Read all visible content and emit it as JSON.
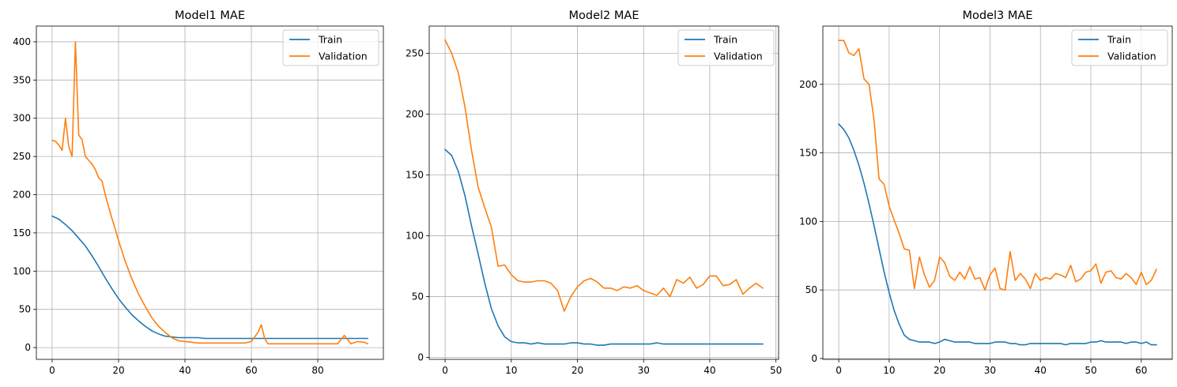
{
  "chart_data": [
    {
      "type": "line",
      "title": "Model1 MAE",
      "xlim": [
        -4.75,
        99.75
      ],
      "ylim": [
        -15.4,
        420.6
      ],
      "xticks": [
        0,
        20,
        40,
        60,
        80
      ],
      "yticks": [
        0,
        50,
        100,
        150,
        200,
        250,
        300,
        350,
        400
      ],
      "grid": true,
      "legend": "top-right",
      "series": [
        {
          "name": "Train",
          "color": "#1f77b4",
          "x": [
            0,
            2,
            4,
            6,
            8,
            10,
            12,
            14,
            16,
            18,
            20,
            22,
            24,
            26,
            28,
            30,
            32,
            34,
            36,
            38,
            40,
            42,
            44,
            46,
            48,
            50,
            52,
            54,
            56,
            58,
            60,
            62,
            64,
            66,
            68,
            70,
            72,
            74,
            76,
            78,
            80,
            82,
            84,
            86,
            88,
            90,
            92,
            95
          ],
          "y": [
            172,
            168,
            161,
            153,
            143,
            133,
            120,
            106,
            91,
            77,
            64,
            53,
            43,
            35,
            28,
            22,
            18,
            15,
            14,
            13,
            13,
            13,
            13,
            12,
            12,
            12,
            12,
            12,
            12,
            12,
            12,
            12,
            12,
            12,
            12,
            12,
            12,
            12,
            12,
            12,
            12,
            12,
            12,
            12,
            12,
            12,
            12,
            12
          ]
        },
        {
          "name": "Validation",
          "color": "#ff7f0e",
          "x": [
            0,
            1,
            2,
            3,
            4,
            5,
            6,
            7,
            8,
            9,
            10,
            11,
            12,
            13,
            14,
            15,
            16,
            17,
            18,
            19,
            20,
            22,
            24,
            26,
            28,
            30,
            32,
            34,
            36,
            38,
            40,
            42,
            44,
            46,
            48,
            50,
            52,
            54,
            56,
            58,
            60,
            62,
            63,
            64,
            65,
            66,
            68,
            70,
            72,
            74,
            76,
            78,
            80,
            82,
            84,
            86,
            88,
            90,
            92,
            94,
            95
          ],
          "y": [
            271,
            270,
            265,
            258,
            300,
            263,
            250,
            400,
            278,
            272,
            250,
            245,
            240,
            233,
            222,
            218,
            200,
            184,
            169,
            155,
            140,
            113,
            90,
            70,
            54,
            39,
            28,
            20,
            13,
            9,
            8,
            7,
            6,
            6,
            6,
            6,
            6,
            6,
            6,
            6,
            8,
            20,
            30,
            12,
            5,
            5,
            5,
            5,
            5,
            5,
            5,
            5,
            5,
            5,
            5,
            5,
            16,
            5,
            8,
            7,
            5
          ]
        }
      ]
    },
    {
      "type": "line",
      "title": "Model2 MAE",
      "xlim": [
        -2.4,
        50.4
      ],
      "ylim": [
        -1.6,
        272.5
      ],
      "xticks": [
        0,
        10,
        20,
        30,
        40,
        50
      ],
      "yticks": [
        0,
        50,
        100,
        150,
        200,
        250
      ],
      "grid": true,
      "legend": "top-right",
      "series": [
        {
          "name": "Train",
          "color": "#1f77b4",
          "x": [
            0,
            1,
            2,
            3,
            4,
            5,
            6,
            7,
            8,
            9,
            10,
            11,
            12,
            13,
            14,
            15,
            16,
            17,
            18,
            19,
            20,
            21,
            22,
            23,
            24,
            25,
            26,
            27,
            28,
            29,
            30,
            31,
            32,
            33,
            34,
            35,
            36,
            37,
            38,
            39,
            40,
            41,
            42,
            43,
            44,
            45,
            46,
            47,
            48
          ],
          "y": [
            171,
            166,
            153,
            133,
            108,
            85,
            61,
            40,
            26,
            17,
            13,
            12,
            12,
            11,
            12,
            11,
            11,
            11,
            11,
            12,
            12,
            11,
            11,
            10,
            10,
            11,
            11,
            11,
            11,
            11,
            11,
            11,
            12,
            11,
            11,
            11,
            11,
            11,
            11,
            11,
            11,
            11,
            11,
            11,
            11,
            11,
            11,
            11,
            11
          ]
        },
        {
          "name": "Validation",
          "color": "#ff7f0e",
          "x": [
            0,
            1,
            2,
            3,
            4,
            5,
            6,
            7,
            8,
            9,
            10,
            11,
            12,
            13,
            14,
            15,
            16,
            17,
            18,
            19,
            20,
            21,
            22,
            23,
            24,
            25,
            26,
            27,
            28,
            29,
            30,
            31,
            32,
            33,
            34,
            35,
            36,
            37,
            38,
            39,
            40,
            41,
            42,
            43,
            44,
            45,
            46,
            47,
            48
          ],
          "y": [
            261,
            250,
            234,
            206,
            170,
            140,
            123,
            107,
            75,
            76,
            68,
            63,
            62,
            62,
            63,
            63,
            61,
            55,
            38,
            50,
            58,
            63,
            65,
            62,
            57,
            57,
            55,
            58,
            57,
            59,
            55,
            53,
            51,
            57,
            50,
            64,
            61,
            66,
            57,
            60,
            67,
            67,
            59,
            60,
            64,
            52,
            57,
            61,
            57
          ]
        }
      ]
    },
    {
      "type": "line",
      "title": "Model3 MAE",
      "xlim": [
        -3.15,
        66.15
      ],
      "ylim": [
        -0.6,
        242.5
      ],
      "xticks": [
        0,
        10,
        20,
        30,
        40,
        50,
        60
      ],
      "yticks": [
        0,
        50,
        100,
        150,
        200
      ],
      "grid": true,
      "legend": "top-right",
      "series": [
        {
          "name": "Train",
          "color": "#1f77b4",
          "x": [
            0,
            1,
            2,
            3,
            4,
            5,
            6,
            7,
            8,
            9,
            10,
            11,
            12,
            13,
            14,
            15,
            16,
            17,
            18,
            19,
            20,
            21,
            22,
            23,
            24,
            25,
            26,
            27,
            28,
            29,
            30,
            31,
            32,
            33,
            34,
            35,
            36,
            37,
            38,
            39,
            40,
            41,
            42,
            43,
            44,
            45,
            46,
            47,
            48,
            49,
            50,
            51,
            52,
            53,
            54,
            55,
            56,
            57,
            58,
            59,
            60,
            61,
            62,
            63
          ],
          "y": [
            171,
            167,
            161,
            152,
            141,
            128,
            113,
            97,
            80,
            63,
            48,
            35,
            25,
            17,
            14,
            13,
            12,
            12,
            12,
            11,
            12,
            14,
            13,
            12,
            12,
            12,
            12,
            11,
            11,
            11,
            11,
            12,
            12,
            12,
            11,
            11,
            10,
            10,
            11,
            11,
            11,
            11,
            11,
            11,
            11,
            10,
            11,
            11,
            11,
            11,
            12,
            12,
            13,
            12,
            12,
            12,
            12,
            11,
            12,
            12,
            11,
            12,
            10,
            10
          ]
        },
        {
          "name": "Validation",
          "color": "#ff7f0e",
          "x": [
            0,
            1,
            2,
            3,
            4,
            5,
            6,
            7,
            8,
            9,
            10,
            11,
            12,
            13,
            14,
            15,
            16,
            17,
            18,
            19,
            20,
            21,
            22,
            23,
            24,
            25,
            26,
            27,
            28,
            29,
            30,
            31,
            32,
            33,
            34,
            35,
            36,
            37,
            38,
            39,
            40,
            41,
            42,
            43,
            44,
            45,
            46,
            47,
            48,
            49,
            50,
            51,
            52,
            53,
            54,
            55,
            56,
            57,
            58,
            59,
            60,
            61,
            62,
            63
          ],
          "y": [
            232,
            232,
            223,
            221,
            226,
            204,
            200,
            174,
            131,
            127,
            111,
            101,
            91,
            80,
            79,
            51,
            74,
            61,
            52,
            57,
            74,
            70,
            60,
            57,
            63,
            58,
            67,
            58,
            59,
            50,
            61,
            66,
            51,
            50,
            78,
            57,
            62,
            58,
            51,
            62,
            57,
            59,
            58,
            62,
            61,
            59,
            68,
            56,
            58,
            63,
            64,
            69,
            55,
            63,
            64,
            59,
            58,
            62,
            59,
            54,
            63,
            54,
            57,
            65
          ]
        }
      ]
    }
  ]
}
